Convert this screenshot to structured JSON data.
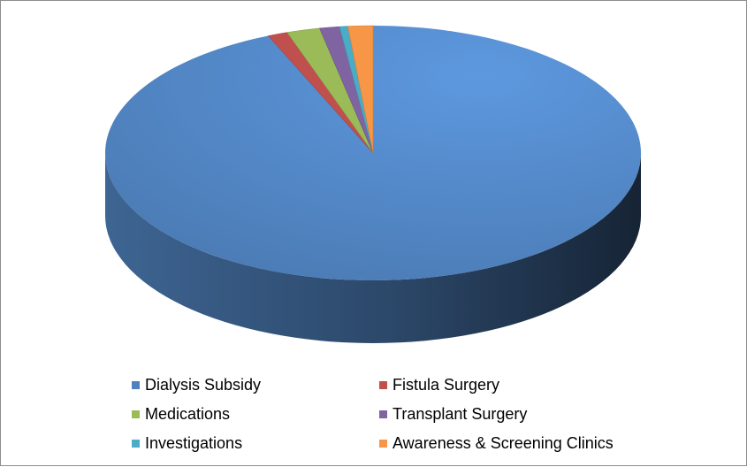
{
  "chart_data": {
    "type": "pie",
    "title": "",
    "slices": [
      {
        "label": "Dialysis Subsidy",
        "value": 93.6,
        "color": "#4F81BD"
      },
      {
        "label": "Fistula Surgery",
        "value": 1.2,
        "color": "#C0504D"
      },
      {
        "label": "Medications",
        "value": 2.0,
        "color": "#9BBB59"
      },
      {
        "label": "Transplant Surgery",
        "value": 1.2,
        "color": "#8064A2"
      },
      {
        "label": "Investigations",
        "value": 0.5,
        "color": "#4BACC6"
      },
      {
        "label": "Awareness & Screening Clinics",
        "value": 1.5,
        "color": "#F79646"
      }
    ],
    "legend": {
      "placement": "bottom",
      "columns": 2
    }
  }
}
